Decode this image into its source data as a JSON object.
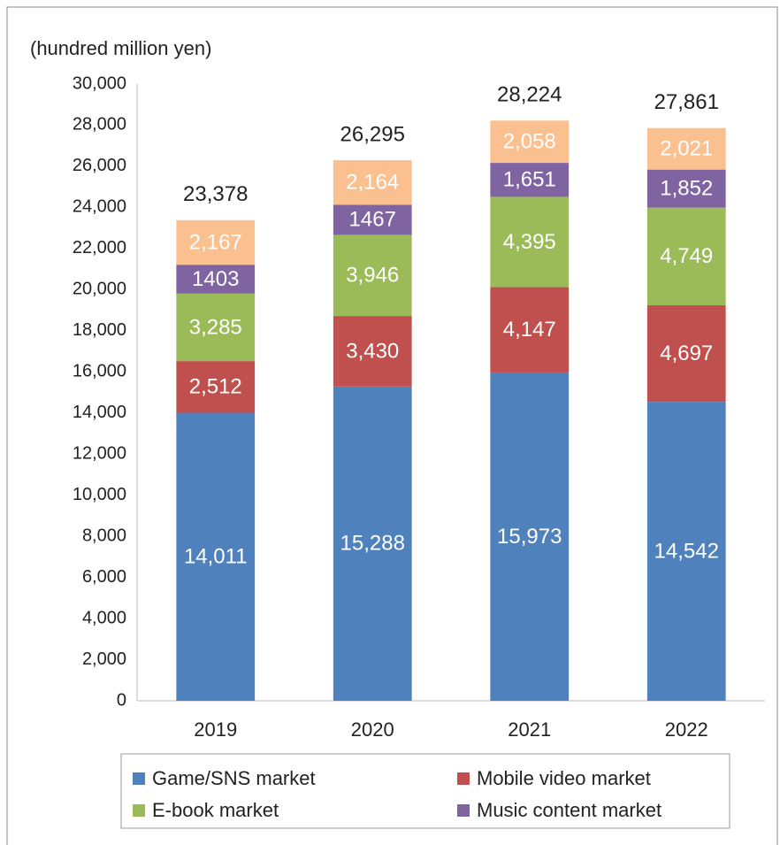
{
  "chart_data": {
    "type": "stacked_bar",
    "y_axis_label": "(hundred million yen)",
    "categories": [
      "2019",
      "2020",
      "2021",
      "2022"
    ],
    "series": [
      {
        "name": "Game/SNS market",
        "color": "#4f81bd",
        "values": [
          14011,
          15288,
          15973,
          14542
        ],
        "value_labels": [
          "14,011",
          "15,288",
          "15,973",
          "14,542"
        ]
      },
      {
        "name": "Mobile video market",
        "color": "#c0504d",
        "values": [
          2512,
          3430,
          4147,
          4697
        ],
        "value_labels": [
          "2,512",
          "3,430",
          "4,147",
          "4,697"
        ]
      },
      {
        "name": "E-book market",
        "color": "#9bbb59",
        "values": [
          3285,
          3946,
          4395,
          4749
        ],
        "value_labels": [
          "3,285",
          "3,946",
          "4,395",
          "4,749"
        ]
      },
      {
        "name": "Music content market",
        "color": "#8064a2",
        "values": [
          1403,
          1467,
          1651,
          1852
        ],
        "value_labels": [
          "1403",
          "1467",
          "1,651",
          "1,852"
        ]
      },
      {
        "color": "#fac090",
        "values": [
          2167,
          2164,
          2058,
          2021
        ],
        "value_labels": [
          "2,167",
          "2,164",
          "2,058",
          "2,021"
        ]
      }
    ],
    "totals": [
      23378,
      26295,
      28224,
      27861
    ],
    "total_labels": [
      "23,378",
      "26,295",
      "28,224",
      "27,861"
    ],
    "ylim": [
      0,
      30000
    ],
    "yticks": [
      0,
      {
        "value": 2000,
        "label": "2,000"
      },
      {
        "value": 4000,
        "label": "4,000"
      },
      {
        "value": 6000,
        "label": "6,000"
      },
      {
        "value": 8000,
        "label": "8,000"
      },
      {
        "value": 10000,
        "label": "10,000"
      },
      {
        "value": 12000,
        "label": "12,000"
      },
      {
        "value": 14000,
        "label": "14,000"
      },
      {
        "value": 16000,
        "label": "16,000"
      },
      {
        "value": 18000,
        "label": "18,000"
      },
      {
        "value": 20000,
        "label": "20,000"
      },
      {
        "value": 22000,
        "label": "22,000"
      },
      {
        "value": 24000,
        "label": "24,000"
      },
      {
        "value": 26000,
        "label": "26,000"
      },
      {
        "value": 28000,
        "label": "28,000"
      },
      {
        "value": 30000,
        "label": "30,000"
      }
    ],
    "grid": false
  }
}
